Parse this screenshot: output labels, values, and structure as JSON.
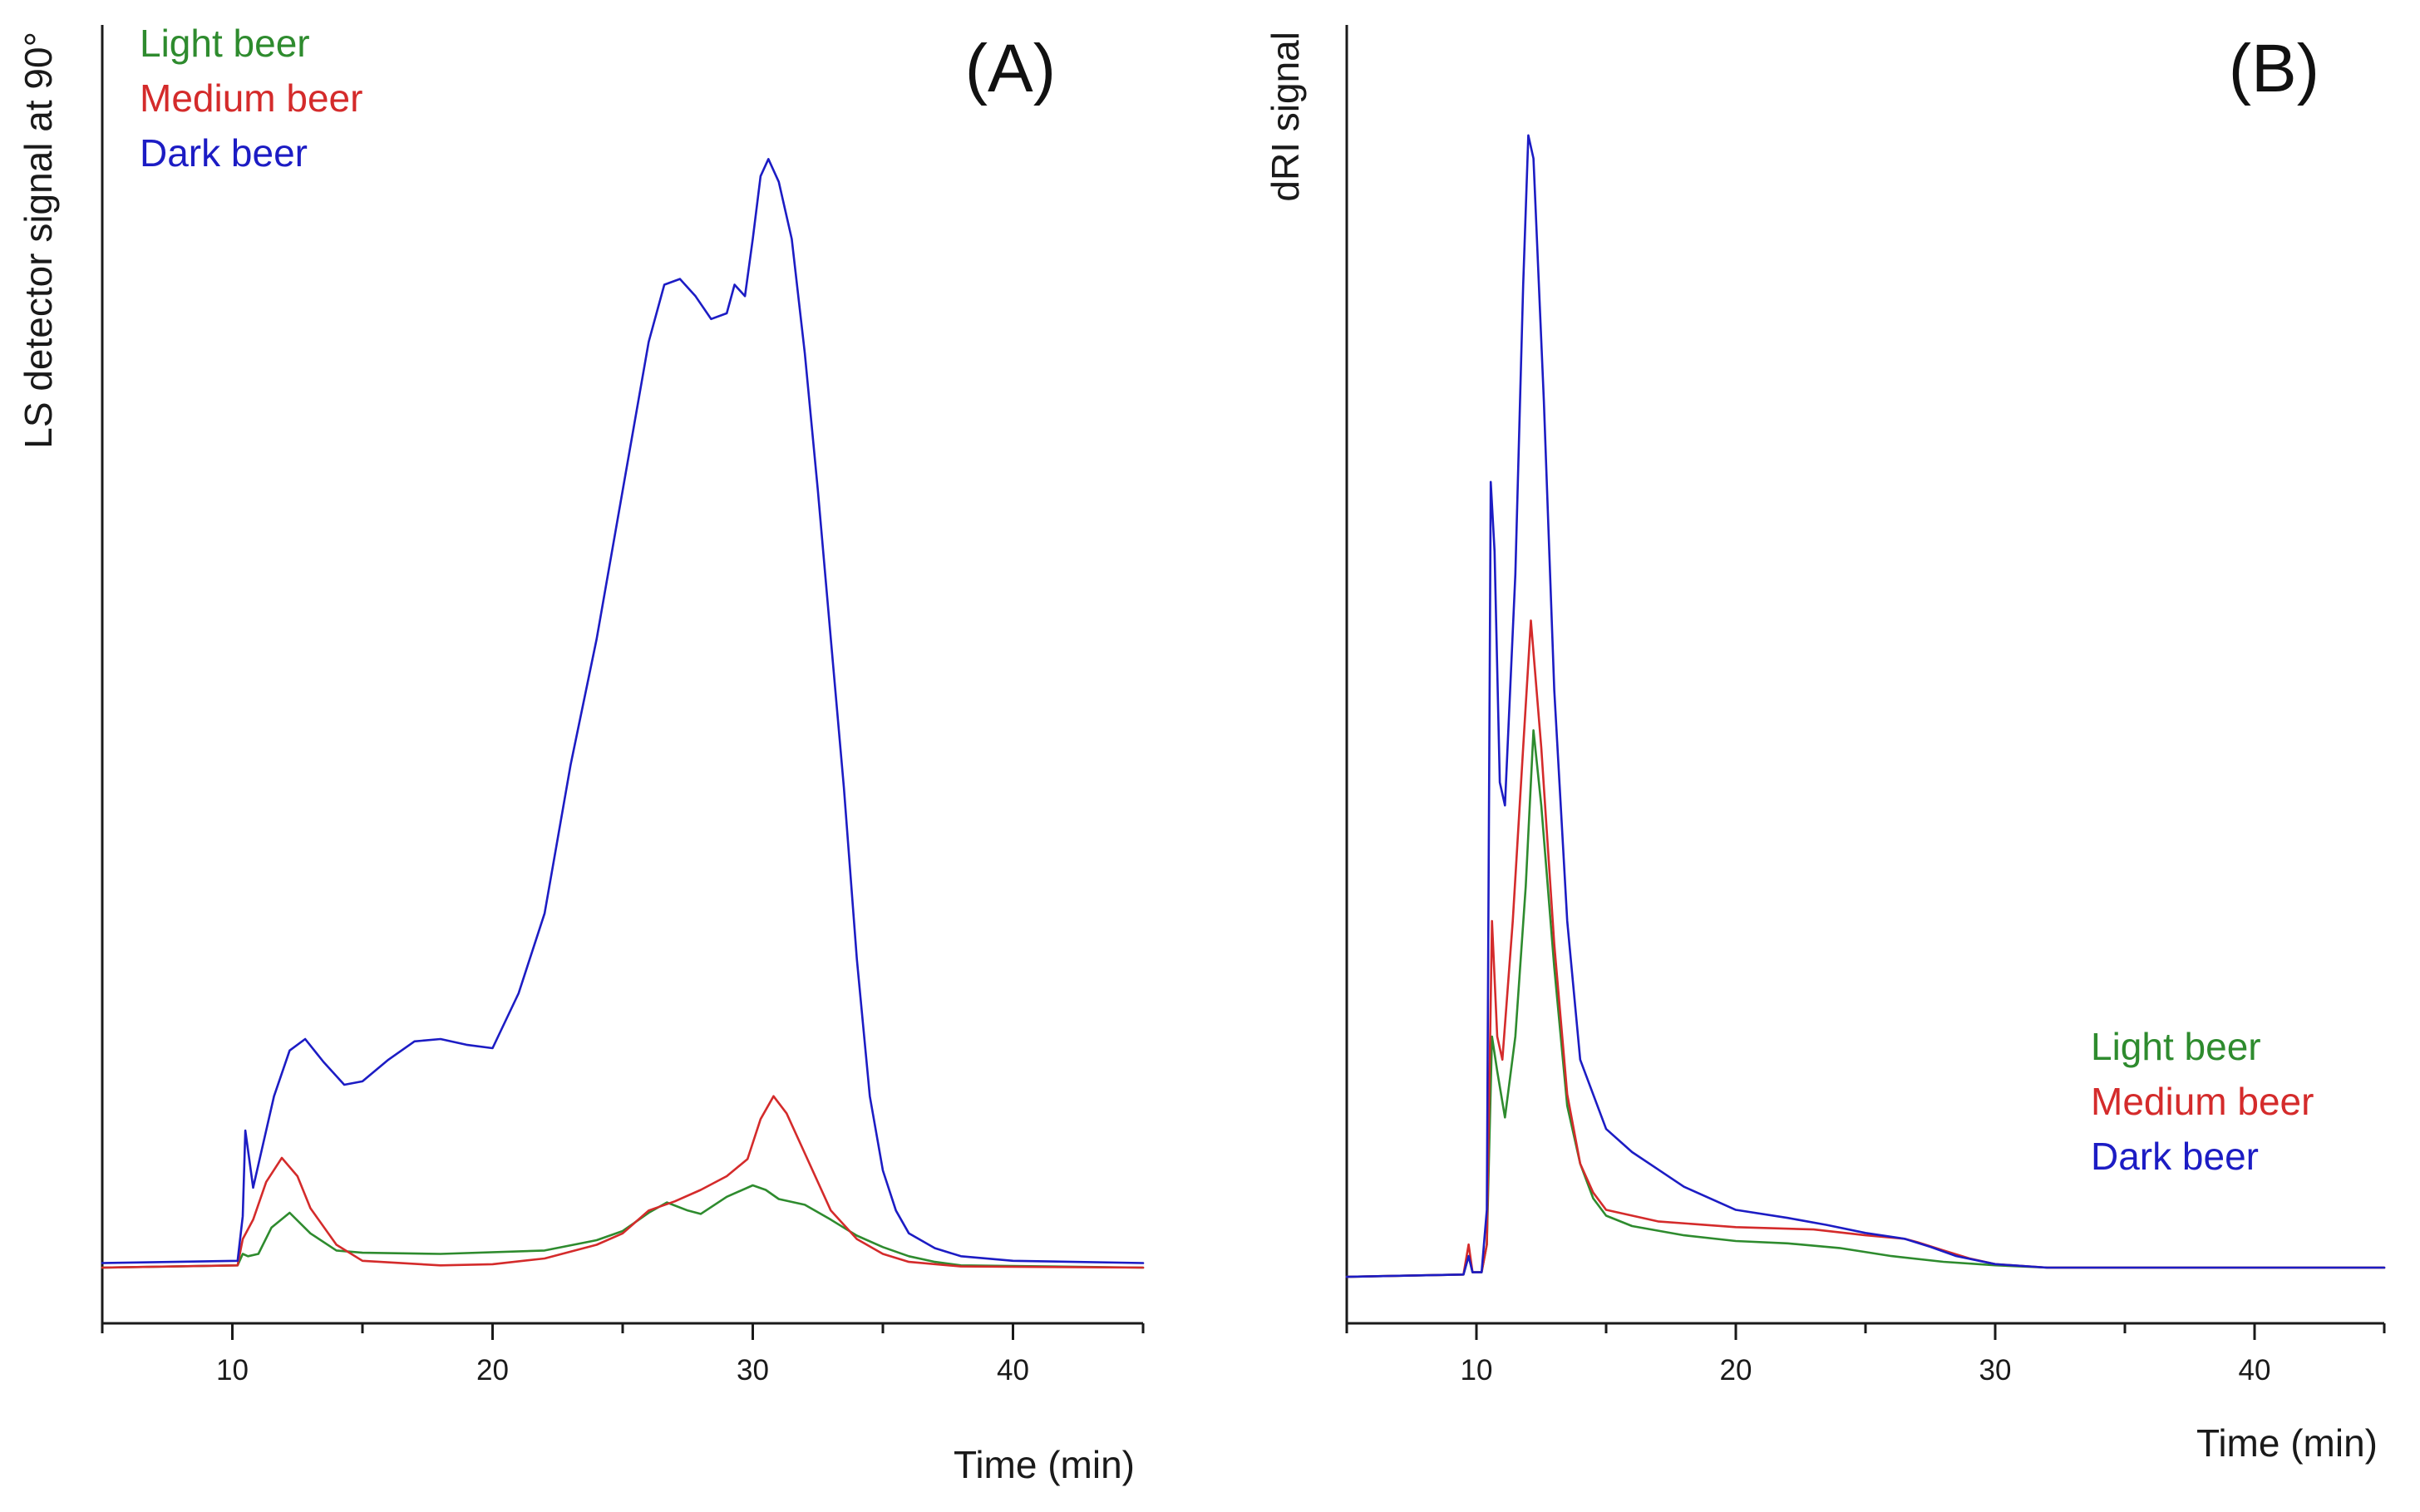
{
  "chart_data": [
    {
      "type": "line",
      "panel_label": "(A)",
      "xlabel": "Time (min)",
      "ylabel": "LS detector signal at 90°",
      "xlim": [
        5,
        45
      ],
      "ylim": [
        -0.05,
        1.0
      ],
      "xticks": [
        10,
        20,
        30,
        40
      ],
      "y_ticks_shown": false,
      "legend_position": "top-left",
      "series": [
        {
          "name": "Light beer",
          "color": "#2e8b2e",
          "points": [
            [
              5,
              0.0
            ],
            [
              10.2,
              0.002
            ],
            [
              10.4,
              0.012
            ],
            [
              10.6,
              0.01
            ],
            [
              11,
              0.012
            ],
            [
              11.5,
              0.035
            ],
            [
              12.2,
              0.048
            ],
            [
              13,
              0.03
            ],
            [
              14,
              0.015
            ],
            [
              15,
              0.013
            ],
            [
              18,
              0.012
            ],
            [
              22,
              0.015
            ],
            [
              24,
              0.024
            ],
            [
              25,
              0.032
            ],
            [
              26,
              0.048
            ],
            [
              26.7,
              0.057
            ],
            [
              27.5,
              0.05
            ],
            [
              28,
              0.047
            ],
            [
              29,
              0.062
            ],
            [
              30,
              0.072
            ],
            [
              30.5,
              0.068
            ],
            [
              31,
              0.06
            ],
            [
              32,
              0.055
            ],
            [
              33,
              0.042
            ],
            [
              34,
              0.028
            ],
            [
              35,
              0.018
            ],
            [
              36,
              0.01
            ],
            [
              37,
              0.005
            ],
            [
              38,
              0.002
            ],
            [
              45,
              0.0
            ]
          ]
        },
        {
          "name": "Medium beer",
          "color": "#d42b2b",
          "points": [
            [
              5,
              0.0
            ],
            [
              10.2,
              0.002
            ],
            [
              10.4,
              0.025
            ],
            [
              10.8,
              0.042
            ],
            [
              11.3,
              0.075
            ],
            [
              11.9,
              0.096
            ],
            [
              12.5,
              0.08
            ],
            [
              13,
              0.052
            ],
            [
              14,
              0.02
            ],
            [
              15,
              0.006
            ],
            [
              18,
              0.002
            ],
            [
              20,
              0.003
            ],
            [
              22,
              0.008
            ],
            [
              24,
              0.02
            ],
            [
              25,
              0.03
            ],
            [
              26,
              0.05
            ],
            [
              27,
              0.058
            ],
            [
              28,
              0.068
            ],
            [
              29,
              0.08
            ],
            [
              29.8,
              0.095
            ],
            [
              30.3,
              0.13
            ],
            [
              30.8,
              0.15
            ],
            [
              31.3,
              0.135
            ],
            [
              32,
              0.1
            ],
            [
              33,
              0.05
            ],
            [
              34,
              0.025
            ],
            [
              35,
              0.012
            ],
            [
              36,
              0.005
            ],
            [
              38,
              0.001
            ],
            [
              45,
              0.0
            ]
          ]
        },
        {
          "name": "Dark beer",
          "color": "#1c1cc4",
          "points": [
            [
              5,
              0.004
            ],
            [
              10.2,
              0.006
            ],
            [
              10.4,
              0.045
            ],
            [
              10.5,
              0.12
            ],
            [
              10.8,
              0.07
            ],
            [
              11.1,
              0.1
            ],
            [
              11.6,
              0.15
            ],
            [
              12.2,
              0.19
            ],
            [
              12.8,
              0.2
            ],
            [
              13.5,
              0.18
            ],
            [
              14.3,
              0.16
            ],
            [
              15,
              0.163
            ],
            [
              16,
              0.182
            ],
            [
              17,
              0.198
            ],
            [
              18,
              0.2
            ],
            [
              19,
              0.195
            ],
            [
              20,
              0.192
            ],
            [
              21,
              0.24
            ],
            [
              22,
              0.31
            ],
            [
              23,
              0.44
            ],
            [
              24,
              0.55
            ],
            [
              25,
              0.68
            ],
            [
              26,
              0.81
            ],
            [
              26.6,
              0.86
            ],
            [
              27.2,
              0.865
            ],
            [
              27.8,
              0.85
            ],
            [
              28.4,
              0.83
            ],
            [
              29,
              0.835
            ],
            [
              29.3,
              0.86
            ],
            [
              29.7,
              0.85
            ],
            [
              30,
              0.9
            ],
            [
              30.3,
              0.955
            ],
            [
              30.6,
              0.97
            ],
            [
              31,
              0.95
            ],
            [
              31.5,
              0.9
            ],
            [
              32,
              0.8
            ],
            [
              32.5,
              0.68
            ],
            [
              33,
              0.55
            ],
            [
              33.5,
              0.42
            ],
            [
              34,
              0.27
            ],
            [
              34.5,
              0.15
            ],
            [
              35,
              0.085
            ],
            [
              35.5,
              0.05
            ],
            [
              36,
              0.03
            ],
            [
              37,
              0.017
            ],
            [
              38,
              0.01
            ],
            [
              40,
              0.006
            ],
            [
              45,
              0.004
            ]
          ]
        }
      ]
    },
    {
      "type": "line",
      "panel_label": "(B)",
      "xlabel": "Time (min)",
      "ylabel": "dRI signal",
      "xlim": [
        5,
        45
      ],
      "ylim": [
        -0.05,
        1.0
      ],
      "xticks": [
        10,
        20,
        30,
        40
      ],
      "y_ticks_shown": false,
      "legend_position": "bottom-right",
      "series": [
        {
          "name": "Light beer",
          "color": "#2e8b2e",
          "points": [
            [
              5,
              -0.008
            ],
            [
              9.5,
              -0.006
            ],
            [
              9.7,
              0.01
            ],
            [
              9.85,
              -0.004
            ],
            [
              10.2,
              -0.004
            ],
            [
              10.4,
              0.02
            ],
            [
              10.6,
              0.2
            ],
            [
              10.8,
              0.17
            ],
            [
              11.1,
              0.13
            ],
            [
              11.5,
              0.2
            ],
            [
              11.9,
              0.33
            ],
            [
              12.2,
              0.465
            ],
            [
              12.5,
              0.4
            ],
            [
              13,
              0.26
            ],
            [
              13.5,
              0.14
            ],
            [
              14,
              0.09
            ],
            [
              14.5,
              0.06
            ],
            [
              15,
              0.045
            ],
            [
              16,
              0.036
            ],
            [
              18,
              0.028
            ],
            [
              20,
              0.023
            ],
            [
              22,
              0.021
            ],
            [
              24,
              0.017
            ],
            [
              26,
              0.01
            ],
            [
              28,
              0.005
            ],
            [
              30,
              0.002
            ],
            [
              32,
              0.0
            ],
            [
              45,
              0.0
            ]
          ]
        },
        {
          "name": "Medium beer",
          "color": "#d42b2b",
          "points": [
            [
              5,
              -0.008
            ],
            [
              9.5,
              -0.006
            ],
            [
              9.7,
              0.02
            ],
            [
              9.85,
              -0.004
            ],
            [
              10.2,
              -0.004
            ],
            [
              10.4,
              0.02
            ],
            [
              10.6,
              0.3
            ],
            [
              10.8,
              0.2
            ],
            [
              11,
              0.18
            ],
            [
              11.4,
              0.3
            ],
            [
              11.8,
              0.45
            ],
            [
              12.1,
              0.56
            ],
            [
              12.5,
              0.45
            ],
            [
              13,
              0.28
            ],
            [
              13.5,
              0.15
            ],
            [
              14,
              0.09
            ],
            [
              14.5,
              0.065
            ],
            [
              15,
              0.05
            ],
            [
              17,
              0.04
            ],
            [
              20,
              0.035
            ],
            [
              23,
              0.033
            ],
            [
              25,
              0.028
            ],
            [
              26.5,
              0.025
            ],
            [
              27,
              0.022
            ],
            [
              28,
              0.015
            ],
            [
              29,
              0.008
            ],
            [
              30,
              0.003
            ],
            [
              32,
              0.0
            ],
            [
              45,
              0.0
            ]
          ]
        },
        {
          "name": "Dark beer",
          "color": "#1c1cc4",
          "points": [
            [
              5,
              -0.008
            ],
            [
              9.5,
              -0.006
            ],
            [
              9.7,
              0.01
            ],
            [
              9.85,
              -0.004
            ],
            [
              10.2,
              -0.004
            ],
            [
              10.4,
              0.05
            ],
            [
              10.55,
              0.68
            ],
            [
              10.7,
              0.62
            ],
            [
              10.9,
              0.42
            ],
            [
              11.1,
              0.4
            ],
            [
              11.5,
              0.6
            ],
            [
              11.8,
              0.85
            ],
            [
              12.0,
              0.98
            ],
            [
              12.2,
              0.96
            ],
            [
              12.6,
              0.75
            ],
            [
              13,
              0.5
            ],
            [
              13.5,
              0.3
            ],
            [
              14,
              0.18
            ],
            [
              15,
              0.12
            ],
            [
              16,
              0.1
            ],
            [
              17,
              0.085
            ],
            [
              18,
              0.07
            ],
            [
              20,
              0.05
            ],
            [
              22,
              0.043
            ],
            [
              23.5,
              0.037
            ],
            [
              25,
              0.03
            ],
            [
              26.5,
              0.025
            ],
            [
              27.5,
              0.018
            ],
            [
              28.5,
              0.01
            ],
            [
              30,
              0.003
            ],
            [
              32,
              0.0
            ],
            [
              45,
              0.0
            ]
          ]
        }
      ]
    }
  ]
}
